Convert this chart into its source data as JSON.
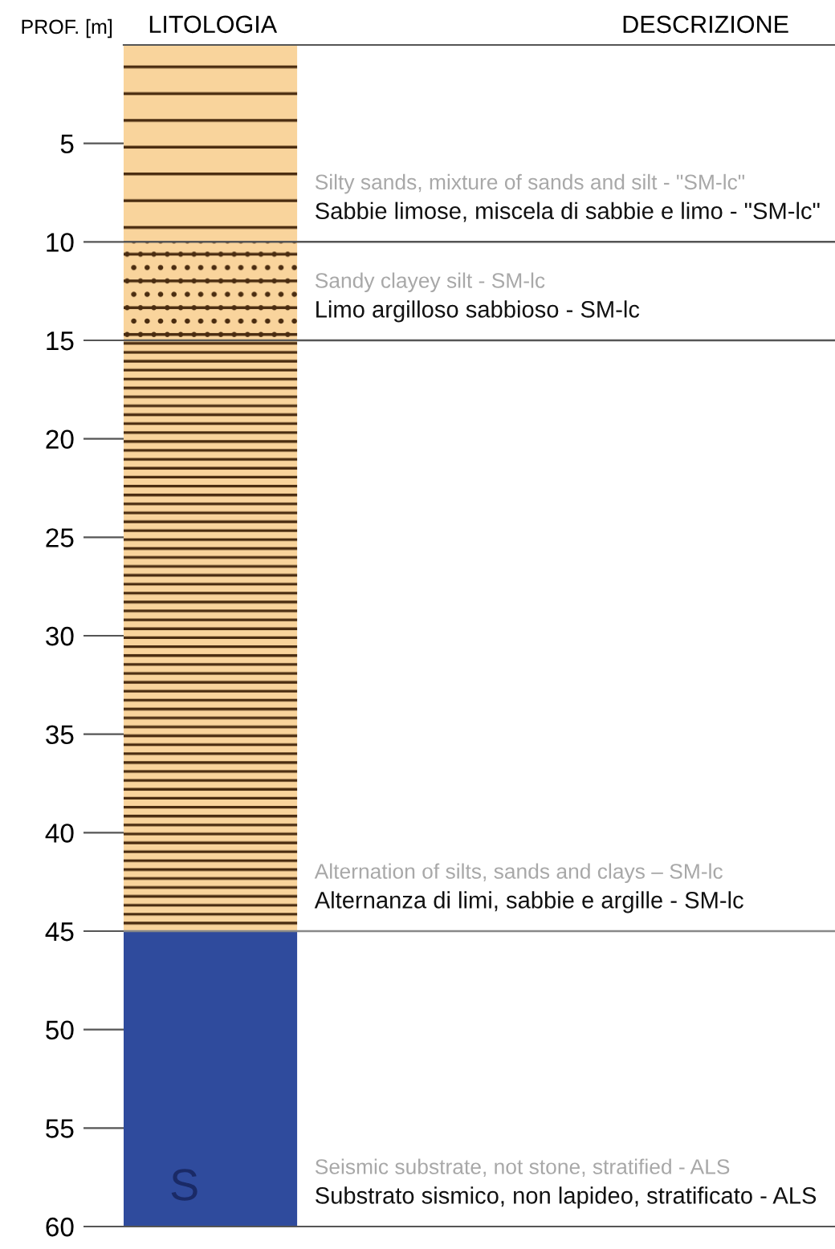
{
  "chart_data": {
    "type": "bar",
    "stacked": true,
    "xlabel": "LITOLOGIA",
    "ylabel": "PROF. [m]",
    "categories": [
      null
    ],
    "series": [
      {
        "color": "#f9d49c",
        "values": [
          10
        ]
      },
      {
        "color": "#f9d49c",
        "values": [
          5
        ]
      },
      {
        "color": "#f9d49c",
        "values": [
          30
        ]
      },
      {
        "color": "#2f4b9d",
        "values": [
          15
        ]
      }
    ],
    "ylim": [
      60,
      0
    ],
    "yticks": [
      5,
      10,
      15,
      20,
      25,
      30,
      35,
      40,
      45,
      50,
      55,
      60
    ],
    "ref_lines": [
      {
        "axis": "y",
        "value": 10,
        "color": "#555555"
      },
      {
        "axis": "y",
        "value": 15,
        "color": "#555555"
      },
      {
        "axis": "y",
        "value": 45,
        "color": "#888888"
      }
    ],
    "annotations": [
      "DESCRIZIONE",
      "Silty sands, mixture of sands and silt - \"SM-lc\"",
      "Sabbie limose, miscela di sabbie e limo - \"SM-lc\"",
      "Sandy clayey silt - SM-lc",
      "Limo argilloso sabbioso - SM-lc",
      "Alternation of silts, sands and clays – SM-lc",
      "Alternanza di limi, sabbie e argille - SM-lc",
      "Seismic substrate, not stone, stratified - ALS",
      "Substrato sismico, non lapideo, stratificato - ALS",
      "S"
    ],
    "grid": false,
    "legend": false
  }
}
